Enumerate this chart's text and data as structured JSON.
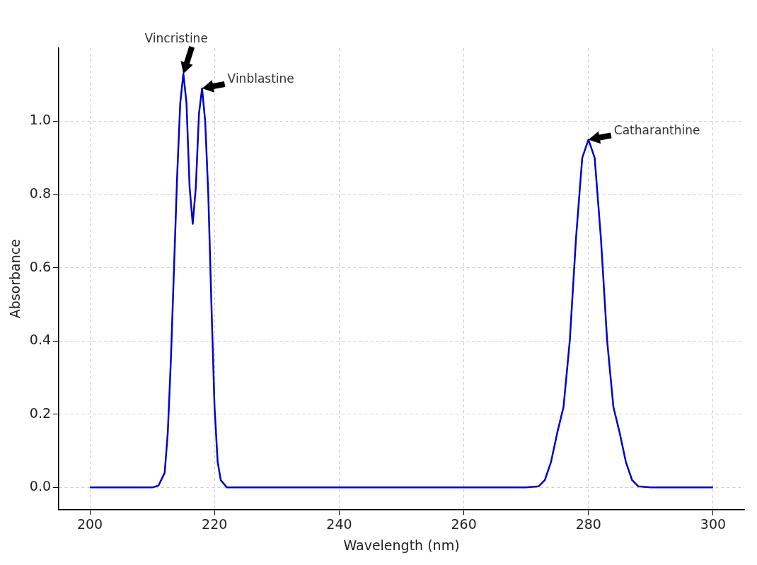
{
  "chart_data": {
    "type": "line",
    "xlabel": "Wavelength (nm)",
    "ylabel": "Absorbance",
    "xlim": [
      195,
      305
    ],
    "ylim": [
      -0.06,
      1.2
    ],
    "xticks": [
      200,
      220,
      240,
      260,
      280,
      300
    ],
    "yticks": [
      {
        "value": 0,
        "label": "0.0"
      },
      {
        "value": 0.2,
        "label": "0.2"
      },
      {
        "value": 0.4,
        "label": "0.4"
      },
      {
        "value": 0.6,
        "label": "0.6"
      },
      {
        "value": 0.8,
        "label": "0.8"
      },
      {
        "value": 1,
        "label": "1.0"
      }
    ],
    "grid": true,
    "legend": false,
    "marker": "none",
    "line_style": "solid",
    "series": [
      {
        "color": "#0000cc",
        "x": [
          200,
          210,
          211,
          212,
          212.5,
          213,
          213.5,
          214,
          214.5,
          215,
          215.5,
          216,
          216.5,
          217,
          217.5,
          218,
          218.5,
          219,
          219.5,
          220,
          220.5,
          221,
          222,
          270,
          272,
          273,
          274,
          275,
          276,
          277,
          278,
          279,
          280,
          281,
          282,
          283,
          284,
          285,
          286,
          287,
          288,
          290,
          300
        ],
        "values": [
          0,
          0,
          0.005,
          0.04,
          0.15,
          0.35,
          0.6,
          0.85,
          1.05,
          1.13,
          1.05,
          0.82,
          0.72,
          0.82,
          1.02,
          1.09,
          1.0,
          0.8,
          0.5,
          0.22,
          0.07,
          0.02,
          0,
          0,
          0.003,
          0.02,
          0.07,
          0.15,
          0.22,
          0.4,
          0.68,
          0.9,
          0.95,
          0.9,
          0.68,
          0.4,
          0.22,
          0.15,
          0.07,
          0.02,
          0.003,
          0,
          0
        ]
      }
    ],
    "annotations": [
      {
        "text": "Vincristine",
        "x": 215,
        "y": 1.13
      },
      {
        "text": "Vinblastine",
        "x": 218,
        "y": 1.09
      },
      {
        "text": "Catharanthine",
        "x": 280,
        "y": 0.95
      }
    ]
  }
}
